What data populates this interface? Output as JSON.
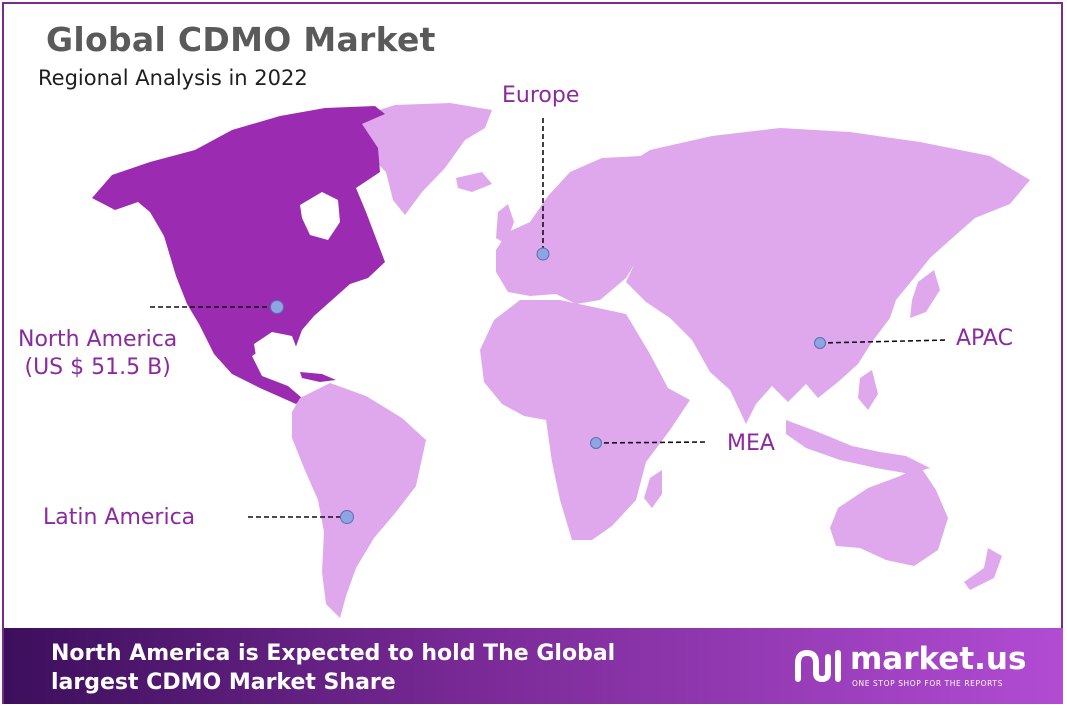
{
  "header": {
    "title": "Global CDMO Market",
    "subtitle": "Regional Analysis in 2022"
  },
  "regions": [
    {
      "id": "north-america",
      "name": "North America",
      "value": "(US $ 51.5 B)",
      "highlighted": true
    },
    {
      "id": "europe",
      "name": "Europe",
      "highlighted": false
    },
    {
      "id": "apac",
      "name": "APAC",
      "highlighted": false
    },
    {
      "id": "mea",
      "name": "MEA",
      "highlighted": false
    },
    {
      "id": "latin-america",
      "name": "Latin America",
      "highlighted": false
    }
  ],
  "footer": {
    "line1": "North America is Expected to hold The Global",
    "line2": "largest CDMO Market Share"
  },
  "brand": {
    "name": "market.us",
    "tagline": "ONE STOP SHOP FOR THE REPORTS"
  },
  "colors": {
    "highlight": "#9b2bb0",
    "land": "#dfa8ec",
    "label": "#8b2a9e",
    "marker": "#8fa5e3"
  }
}
